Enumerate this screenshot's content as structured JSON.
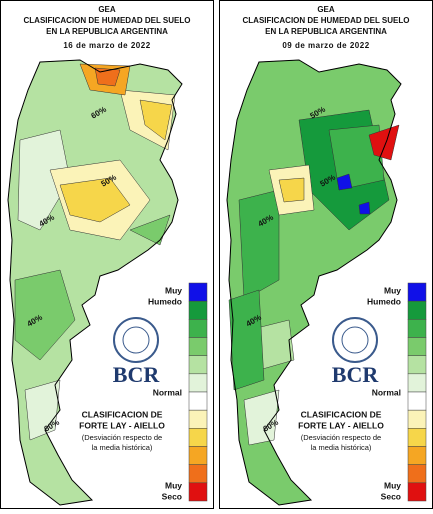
{
  "panels": [
    {
      "org": "GEA",
      "title_1": "CLASIFICACION DE HUMEDAD DEL SUELO",
      "title_2": "EN LA REPUBLICA ARGENTINA",
      "date": "16 de marzo de 2022",
      "contour_labels": [
        "60%",
        "50%",
        "40%",
        "40%",
        "60%"
      ],
      "legend_top": [
        "Muy",
        "Humedo"
      ],
      "legend_mid": "Normal",
      "legend_bottom": [
        "Muy",
        "Seco"
      ],
      "logo": "BCR",
      "method_1": "CLASIFICACION DE",
      "method_2": "FORTE LAY - AIELLO",
      "note_1": "(Desviación respecto de",
      "note_2": "la media histórica)"
    },
    {
      "org": "GEA",
      "title_1": "CLASIFICACION DE HUMEDAD DEL SUELO",
      "title_2": "EN LA REPUBLICA ARGENTINA",
      "date": "09 de marzo de 2022",
      "contour_labels": [
        "50%",
        "50%",
        "40%",
        "40%",
        "60%"
      ],
      "legend_top": [
        "Muy",
        "Humedo"
      ],
      "legend_mid": "Normal",
      "legend_bottom": [
        "Muy",
        "Seco"
      ],
      "logo": "BCR",
      "method_1": "CLASIFICACION DE",
      "method_2": "FORTE LAY - AIELLO",
      "note_1": "(Desviación respecto de",
      "note_2": "la media histórica)"
    }
  ],
  "legend_colors": [
    "#1010e8",
    "#159a3c",
    "#3db24c",
    "#7acb6c",
    "#b5e2a2",
    "#e2f3da",
    "#ffffff",
    "#fbf3b8",
    "#f6d64a",
    "#f5a623",
    "#ef6f1b",
    "#e01010"
  ]
}
